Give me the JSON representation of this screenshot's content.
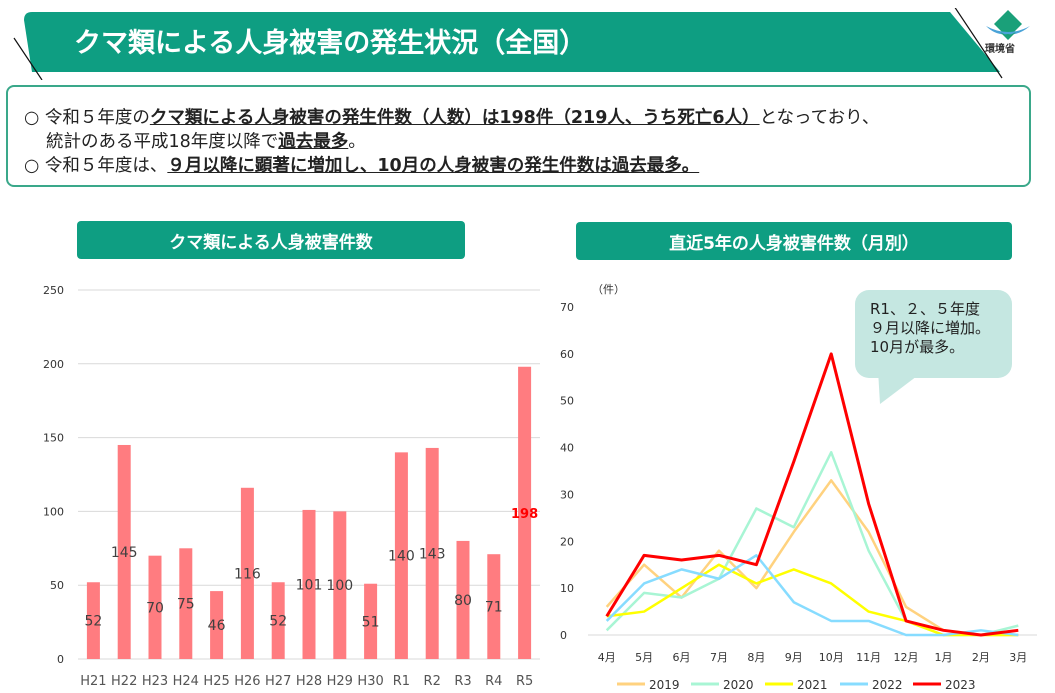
{
  "header": {
    "title": "クマ類による人身被害の発生状況（全国）",
    "logo_text": "環境省"
  },
  "summary": {
    "line1_pre": "○ 令和５年度の",
    "line1_bold": "クマ類による人身被害の発生件数（人数）は198件（219人、うち死亡6人）",
    "line1_post": "となっており、",
    "line2_pre": "統計のある平成18年度以降で",
    "line2_bold": "過去最多",
    "line2_post": "。",
    "line3_pre": "○ 令和５年度は、",
    "line3_bold": "９月以降に顕著に増加し、10月の人身被害の発生件数は過去最多。"
  },
  "colors": {
    "brand": "#0e9e82",
    "bar": "#ff7c80",
    "highlight": "#ff0000"
  },
  "chart_data": [
    {
      "type": "bar",
      "title": "クマ類による人身被害件数",
      "categories": [
        "H21",
        "H22",
        "H23",
        "H24",
        "H25",
        "H26",
        "H27",
        "H28",
        "H29",
        "H30",
        "R1",
        "R2",
        "R3",
        "R4",
        "R5"
      ],
      "values": [
        52,
        145,
        70,
        75,
        46,
        116,
        52,
        101,
        100,
        51,
        140,
        143,
        80,
        71,
        198
      ],
      "labels": [
        "52",
        "145",
        "70",
        "75",
        "46",
        "116",
        "52",
        "101",
        "100",
        "51",
        "140",
        "143",
        "80",
        "71",
        "198"
      ],
      "yticks": [
        "0",
        "50",
        "100",
        "150",
        "200",
        "250"
      ],
      "ylim": [
        0,
        250
      ],
      "grid": true,
      "highlight_category": "R5"
    },
    {
      "type": "line",
      "title": "直近5年の人身被害件数（月別）",
      "ylabel": "（件）",
      "categories": [
        "4月",
        "5月",
        "6月",
        "7月",
        "8月",
        "9月",
        "10月",
        "11月",
        "12月",
        "1月",
        "2月",
        "3月"
      ],
      "yticks": [
        "0",
        "10",
        "20",
        "30",
        "40",
        "50",
        "60",
        "70"
      ],
      "ylim": [
        0,
        70
      ],
      "legend_position": "bottom",
      "series": [
        {
          "name": "2019",
          "color": "#ffd27f",
          "values": [
            6,
            15,
            8,
            18,
            10,
            22,
            33,
            22,
            6,
            1,
            0,
            0
          ]
        },
        {
          "name": "2020",
          "color": "#a8f5d4",
          "values": [
            1,
            9,
            8,
            12,
            27,
            23,
            39,
            18,
            3,
            0,
            0,
            2
          ]
        },
        {
          "name": "2021",
          "color": "#ffff00",
          "values": [
            4,
            5,
            10,
            15,
            11,
            14,
            11,
            5,
            3,
            0,
            0,
            0
          ]
        },
        {
          "name": "2022",
          "color": "#87dcff",
          "values": [
            3,
            11,
            14,
            12,
            17,
            7,
            3,
            3,
            0,
            0,
            1,
            0
          ]
        },
        {
          "name": "2023",
          "color": "#ff0000",
          "values": [
            4,
            17,
            16,
            17,
            15,
            37,
            60,
            28,
            3,
            1,
            0,
            1
          ]
        }
      ],
      "annotation": {
        "line1": "R1、２、５年度",
        "line2": "９月以降に増加。",
        "line3": "10月が最多。"
      }
    }
  ]
}
